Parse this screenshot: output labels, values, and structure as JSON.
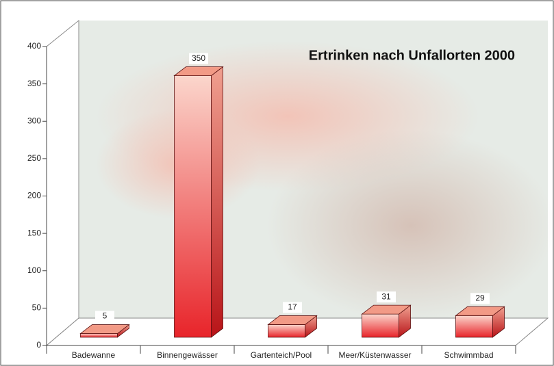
{
  "chart_data": {
    "type": "bar",
    "title": "Ertrinken nach Unfallorten 2000",
    "categories": [
      "Badewanne",
      "Binnengewässer",
      "Gartenteich/Pool",
      "Meer/Küstenwasser",
      "Schwimmbad"
    ],
    "values": [
      5,
      350,
      17,
      31,
      29
    ],
    "color": "#e8242a",
    "ylim": [
      0,
      400
    ],
    "yticks": [
      0,
      50,
      100,
      150,
      200,
      250,
      300,
      350,
      400
    ]
  }
}
